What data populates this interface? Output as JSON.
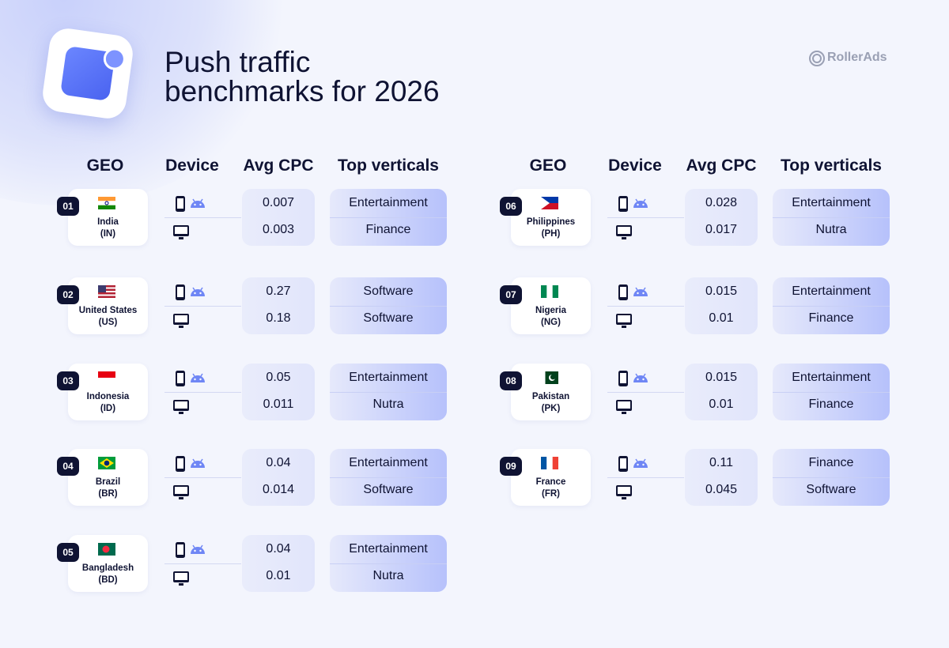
{
  "header": {
    "title_lines": [
      "Push traffic",
      "benchmarks for 2026"
    ],
    "brand": "RollerAds"
  },
  "columns": [
    "GEO",
    "Device",
    "Avg CPC",
    "Top verticals"
  ],
  "rows": [
    {
      "number": "01",
      "country": "India",
      "code": "(IN)",
      "cpc": [
        "0.007",
        "0.003"
      ],
      "verticals": [
        "Entertainment",
        "Finance"
      ]
    },
    {
      "number": "02",
      "country": "United States",
      "code": "(US)",
      "cpc": [
        "0.27",
        "0.18"
      ],
      "verticals": [
        "Software",
        "Software"
      ]
    },
    {
      "number": "03",
      "country": "Indonesia",
      "code": "(ID)",
      "cpc": [
        "0.05",
        "0.011"
      ],
      "verticals": [
        "Entertainment",
        "Nutra"
      ]
    },
    {
      "number": "04",
      "country": "Brazil",
      "code": "(BR)",
      "cpc": [
        "0.04",
        "0.014"
      ],
      "verticals": [
        "Entertainment",
        "Software"
      ]
    },
    {
      "number": "05",
      "country": "Bangladesh",
      "code": "(BD)",
      "cpc": [
        "0.04",
        "0.01"
      ],
      "verticals": [
        "Entertainment",
        "Nutra"
      ]
    },
    {
      "number": "06",
      "country": "Philippines",
      "code": "(PH)",
      "cpc": [
        "0.028",
        "0.017"
      ],
      "verticals": [
        "Entertainment",
        "Nutra"
      ]
    },
    {
      "number": "07",
      "country": "Nigeria",
      "code": "(NG)",
      "cpc": [
        "0.015",
        "0.01"
      ],
      "verticals": [
        "Entertainment",
        "Finance"
      ]
    },
    {
      "number": "08",
      "country": "Pakistan",
      "code": "(PK)",
      "cpc": [
        "0.015",
        "0.01"
      ],
      "verticals": [
        "Entertainment",
        "Finance"
      ]
    },
    {
      "number": "09",
      "country": "France",
      "code": "(FR)",
      "cpc": [
        "0.11",
        "0.045"
      ],
      "verticals": [
        "Finance",
        "Software"
      ]
    }
  ]
}
